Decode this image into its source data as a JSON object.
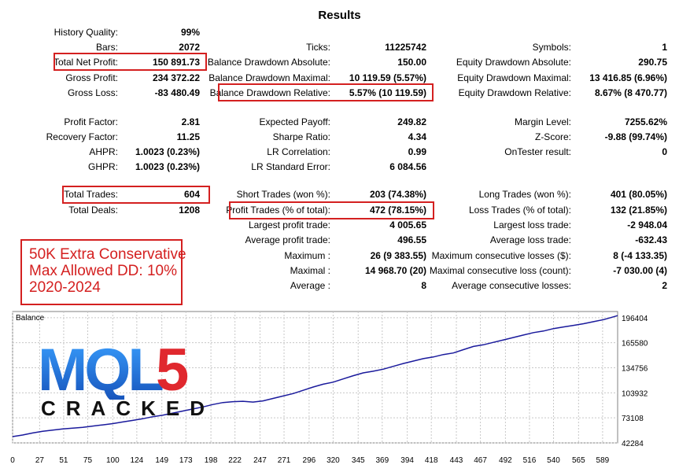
{
  "report": {
    "title": "Results",
    "col1": [
      {
        "label": "History Quality:",
        "value": "99%"
      },
      {
        "label": "Bars:",
        "value": "2072"
      },
      {
        "label": "Total Net Profit:",
        "value": "150 891.73"
      },
      {
        "label": "Gross Profit:",
        "value": "234 372.22"
      },
      {
        "label": "Gross Loss:",
        "value": "-83 480.49"
      },
      {
        "label": "Profit Factor:",
        "value": "2.81"
      },
      {
        "label": "Recovery Factor:",
        "value": "11.25"
      },
      {
        "label": "AHPR:",
        "value": "1.0023 (0.23%)"
      },
      {
        "label": "GHPR:",
        "value": "1.0023 (0.23%)"
      },
      {
        "label": "Total Trades:",
        "value": "604"
      },
      {
        "label": "Total Deals:",
        "value": "1208"
      }
    ],
    "col2": [
      {
        "label": "Ticks:",
        "value": "11225742"
      },
      {
        "label": "Balance Drawdown Absolute:",
        "value": "150.00"
      },
      {
        "label": "Balance Drawdown Maximal:",
        "value": "10 119.59 (5.57%)"
      },
      {
        "label": "Balance Drawdown Relative:",
        "value": "5.57% (10 119.59)"
      },
      {
        "label": "Expected Payoff:",
        "value": "249.82"
      },
      {
        "label": "Sharpe Ratio:",
        "value": "4.34"
      },
      {
        "label": "LR Correlation:",
        "value": "0.99"
      },
      {
        "label": "LR Standard Error:",
        "value": "6 084.56"
      },
      {
        "label": "Short Trades (won %):",
        "value": "203 (74.38%)"
      },
      {
        "label": "Profit Trades (% of total):",
        "value": "472 (78.15%)"
      },
      {
        "label": "Largest profit trade:",
        "value": "4 005.65"
      },
      {
        "label": "Average profit trade:",
        "value": "496.55"
      },
      {
        "label": "Maximum :",
        "value": "26 (9 383.55)"
      },
      {
        "label": "Maximal :",
        "value": "14 968.70 (20)"
      },
      {
        "label": "Average :",
        "value": "8"
      }
    ],
    "col3": [
      {
        "label": "Symbols:",
        "value": "1"
      },
      {
        "label": "Equity Drawdown Absolute:",
        "value": "290.75"
      },
      {
        "label": "Equity Drawdown Maximal:",
        "value": "13 416.85 (6.96%)"
      },
      {
        "label": "Equity Drawdown Relative:",
        "value": "8.67% (8 470.77)"
      },
      {
        "label": "Margin Level:",
        "value": "7255.62%"
      },
      {
        "label": "Z-Score:",
        "value": "-9.88 (99.74%)"
      },
      {
        "label": "OnTester result:",
        "value": "0"
      },
      {
        "label": "Long Trades (won %):",
        "value": "401 (80.05%)"
      },
      {
        "label": "Loss Trades (% of total):",
        "value": "132 (21.85%)"
      },
      {
        "label": "Largest loss trade:",
        "value": "-2 948.04"
      },
      {
        "label": "Average loss trade:",
        "value": "-632.43"
      },
      {
        "label": "Maximum consecutive losses ($):",
        "value": "8 (-4 133.35)"
      },
      {
        "label": "Maximal consecutive loss (count):",
        "value": "-7 030.00 (4)"
      },
      {
        "label": "Average consecutive losses:",
        "value": "2"
      }
    ]
  },
  "annotation": {
    "lines": [
      "50K Extra Conservative",
      "Max Allowed DD: 10%",
      "2020-2024"
    ],
    "color": "#d42020"
  },
  "logo": {
    "text": "MQL5",
    "subtext": "CRACKED",
    "color_blue": "#1f6fd1",
    "color_red": "#e0282e"
  },
  "chart_data": {
    "type": "line",
    "title": "Balance",
    "x_ticks": [
      0,
      27,
      51,
      75,
      100,
      124,
      149,
      173,
      198,
      222,
      247,
      271,
      296,
      320,
      345,
      369,
      394,
      418,
      443,
      467,
      492,
      516,
      540,
      565,
      589
    ],
    "y_ticks": [
      42284,
      73108,
      103932,
      134756,
      165580,
      196404
    ],
    "xlim": [
      0,
      604
    ],
    "ylim": [
      42284,
      204000
    ],
    "grid": true,
    "line_color": "#1a1a9c",
    "series": [
      {
        "x": [
          0,
          10,
          20,
          30,
          40,
          50,
          60,
          70,
          80,
          90,
          100,
          110,
          120,
          130,
          140,
          150,
          160,
          170,
          180,
          190,
          200,
          210,
          220,
          230,
          240,
          250,
          260,
          270,
          280,
          290,
          300,
          310,
          320,
          330,
          340,
          350,
          360,
          370,
          380,
          390,
          400,
          410,
          420,
          430,
          440,
          450,
          460,
          470,
          480,
          490,
          500,
          510,
          520,
          530,
          540,
          550,
          560,
          570,
          580,
          590,
          600,
          604
        ],
        "values": [
          50000,
          52000,
          54500,
          56500,
          58000,
          59500,
          60500,
          61500,
          63000,
          64500,
          66000,
          68000,
          70000,
          72000,
          74500,
          76500,
          79000,
          81500,
          84000,
          86500,
          89500,
          92000,
          93000,
          93500,
          92500,
          94000,
          97000,
          100000,
          103000,
          107000,
          111000,
          114500,
          117000,
          121000,
          125000,
          128500,
          130500,
          133000,
          136500,
          140000,
          143000,
          146000,
          148000,
          151000,
          153000,
          157000,
          161000,
          163000,
          166000,
          169000,
          172000,
          175000,
          178000,
          180000,
          183000,
          185000,
          187000,
          189000,
          191500,
          194000,
          197500,
          199000
        ]
      }
    ]
  }
}
